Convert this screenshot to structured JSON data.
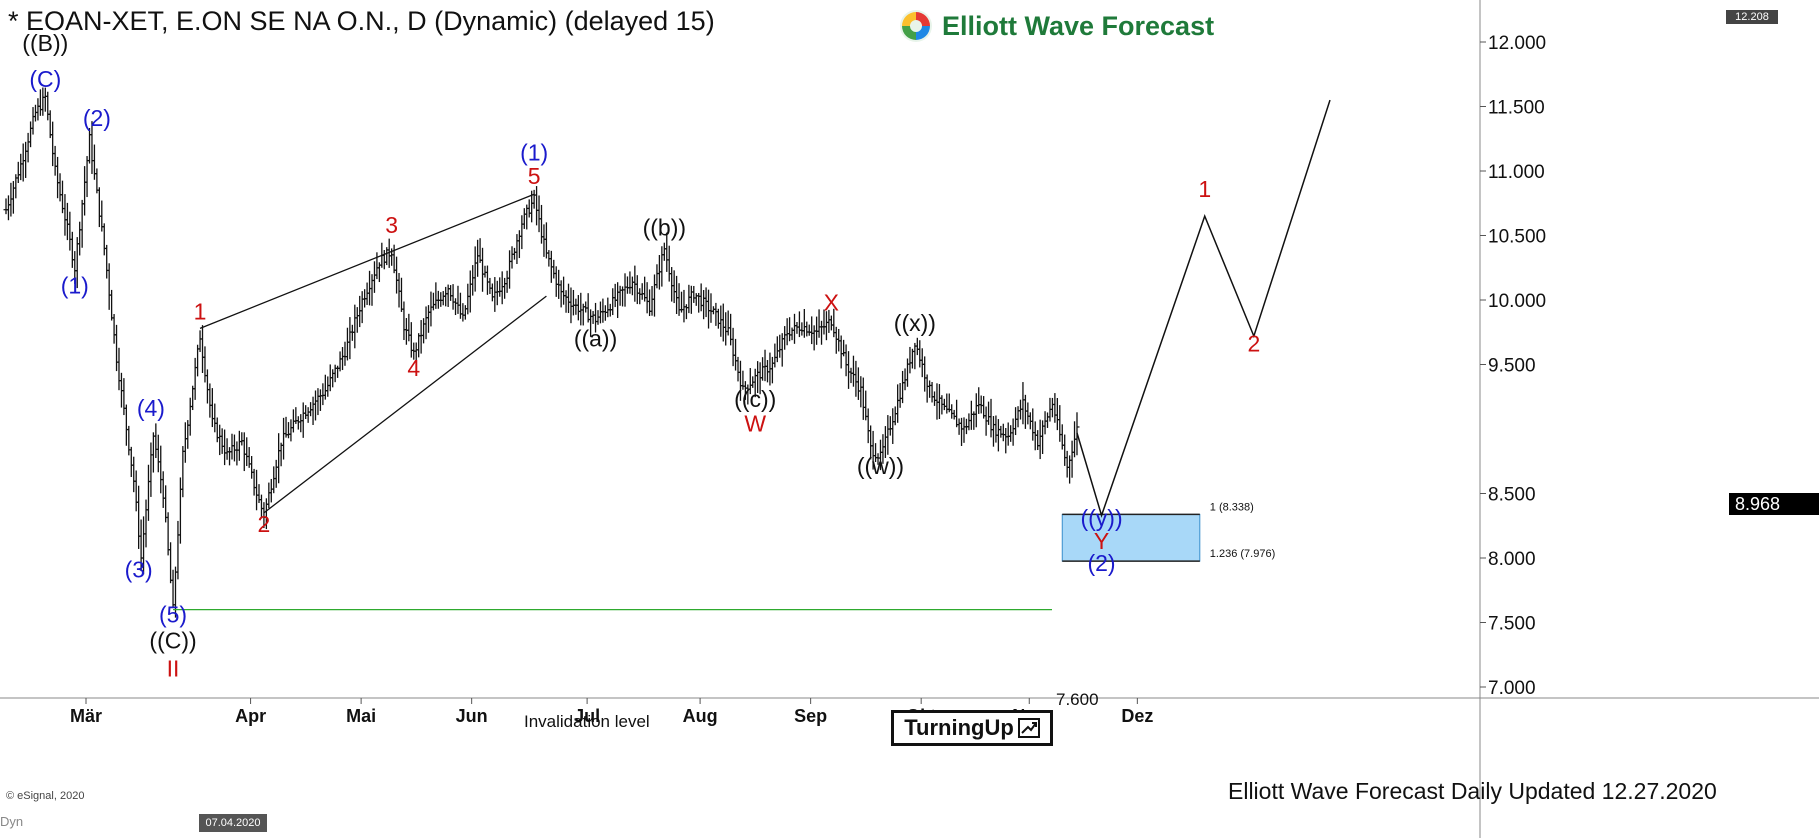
{
  "header": {
    "title": "* EOAN-XET, E.ON SE NA O.N., D (Dynamic) (delayed 15)",
    "brand": "Elliott Wave Forecast",
    "brand_logo_icon": "ewf-swirl-logo",
    "top_price_box": "12.208"
  },
  "footer": {
    "updated": "Elliott Wave Forecast Daily Updated 12.27.2020",
    "copyright": "© eSignal, 2020",
    "dyn": "Dyn",
    "cursor_date": "07.04.2020"
  },
  "turning_up": {
    "label": "TurningUp",
    "icon": "trend-up-arrow-icon"
  },
  "invalidation": {
    "label": "Invalidation level",
    "value_label": "7.600",
    "value": 7.6,
    "color": "#2eaa2e"
  },
  "current_price": {
    "label": "8.968",
    "value": 8.968
  },
  "target_zone": {
    "upper": 8.338,
    "lower": 7.976,
    "upper_label": "1 (8.338)",
    "lower_label": "1.236 (7.976)",
    "fill": "#a8d8f8",
    "stroke": "#3a8fcc"
  },
  "chart_data": {
    "type": "ohlc",
    "ylim": [
      7.0,
      12.25
    ],
    "yticks": [
      "7.000",
      "7.500",
      "8.000",
      "8.500",
      "9.500",
      "10.000",
      "10.500",
      "11.000",
      "11.500",
      "12.000"
    ],
    "xticks": [
      "Mär",
      "Apr",
      "Mai",
      "Jun",
      "Jul",
      "Aug",
      "Sep",
      "Okt",
      "Nov",
      "Dez"
    ],
    "colors": {
      "blue": "#1a1acc",
      "red": "#cc1111",
      "black": "#111111"
    },
    "anchors": [
      {
        "x": 0,
        "y": 10.7
      },
      {
        "x": 6,
        "y": 11.05
      },
      {
        "x": 12,
        "y": 11.45
      },
      {
        "x": 16,
        "y": 11.57
      },
      {
        "x": 20,
        "y": 11.0
      },
      {
        "x": 25,
        "y": 10.55
      },
      {
        "x": 28,
        "y": 10.25
      },
      {
        "x": 34,
        "y": 11.25
      },
      {
        "x": 40,
        "y": 10.4
      },
      {
        "x": 45,
        "y": 9.55
      },
      {
        "x": 52,
        "y": 8.6
      },
      {
        "x": 55,
        "y": 8.0
      },
      {
        "x": 60,
        "y": 8.95
      },
      {
        "x": 64,
        "y": 8.5
      },
      {
        "x": 68,
        "y": 7.6
      },
      {
        "x": 72,
        "y": 8.8
      },
      {
        "x": 79,
        "y": 9.72
      },
      {
        "x": 84,
        "y": 9.05
      },
      {
        "x": 90,
        "y": 8.8
      },
      {
        "x": 96,
        "y": 8.9
      },
      {
        "x": 102,
        "y": 8.5
      },
      {
        "x": 105,
        "y": 8.33
      },
      {
        "x": 112,
        "y": 8.9
      },
      {
        "x": 120,
        "y": 9.1
      },
      {
        "x": 130,
        "y": 9.3
      },
      {
        "x": 138,
        "y": 9.6
      },
      {
        "x": 145,
        "y": 10.0
      },
      {
        "x": 152,
        "y": 10.3
      },
      {
        "x": 157,
        "y": 10.38
      },
      {
        "x": 162,
        "y": 9.8
      },
      {
        "x": 166,
        "y": 9.58
      },
      {
        "x": 172,
        "y": 9.9
      },
      {
        "x": 180,
        "y": 10.1
      },
      {
        "x": 186,
        "y": 9.85
      },
      {
        "x": 192,
        "y": 10.35
      },
      {
        "x": 198,
        "y": 10.0
      },
      {
        "x": 204,
        "y": 10.2
      },
      {
        "x": 210,
        "y": 10.6
      },
      {
        "x": 215,
        "y": 10.78
      },
      {
        "x": 220,
        "y": 10.35
      },
      {
        "x": 226,
        "y": 10.05
      },
      {
        "x": 232,
        "y": 9.95
      },
      {
        "x": 240,
        "y": 9.85
      },
      {
        "x": 248,
        "y": 10.0
      },
      {
        "x": 255,
        "y": 10.15
      },
      {
        "x": 262,
        "y": 9.95
      },
      {
        "x": 268,
        "y": 10.4
      },
      {
        "x": 274,
        "y": 9.9
      },
      {
        "x": 280,
        "y": 10.05
      },
      {
        "x": 288,
        "y": 9.9
      },
      {
        "x": 294,
        "y": 9.75
      },
      {
        "x": 300,
        "y": 9.3
      },
      {
        "x": 305,
        "y": 9.4
      },
      {
        "x": 312,
        "y": 9.5
      },
      {
        "x": 318,
        "y": 9.75
      },
      {
        "x": 324,
        "y": 9.8
      },
      {
        "x": 330,
        "y": 9.75
      },
      {
        "x": 336,
        "y": 9.84
      },
      {
        "x": 342,
        "y": 9.5
      },
      {
        "x": 348,
        "y": 9.3
      },
      {
        "x": 352,
        "y": 8.85
      },
      {
        "x": 356,
        "y": 8.78
      },
      {
        "x": 362,
        "y": 9.15
      },
      {
        "x": 366,
        "y": 9.4
      },
      {
        "x": 370,
        "y": 9.68
      },
      {
        "x": 376,
        "y": 9.3
      },
      {
        "x": 382,
        "y": 9.15
      },
      {
        "x": 390,
        "y": 9.0
      },
      {
        "x": 396,
        "y": 9.2
      },
      {
        "x": 402,
        "y": 9.0
      },
      {
        "x": 408,
        "y": 8.95
      },
      {
        "x": 414,
        "y": 9.2
      },
      {
        "x": 420,
        "y": 8.9
      },
      {
        "x": 426,
        "y": 9.2
      },
      {
        "x": 432,
        "y": 8.7
      },
      {
        "x": 436,
        "y": 9.0
      }
    ],
    "projection": [
      {
        "x": 436,
        "y": 8.97
      },
      {
        "x": 446,
        "y": 8.33
      },
      {
        "x": 488,
        "y": 10.65
      },
      {
        "x": 508,
        "y": 9.72
      },
      {
        "x": 539,
        "y": 11.55
      }
    ],
    "wedge_lines": [
      [
        {
          "x": 79,
          "y": 9.78
        },
        {
          "x": 215,
          "y": 10.82
        }
      ],
      [
        {
          "x": 105,
          "y": 8.35
        },
        {
          "x": 220,
          "y": 10.03
        }
      ]
    ],
    "wave_labels": [
      {
        "text": "((B))",
        "x": 16,
        "y": 11.93,
        "color": "black"
      },
      {
        "text": "(C)",
        "x": 16,
        "y": 11.65,
        "color": "blue"
      },
      {
        "text": "(2)",
        "x": 37,
        "y": 11.35,
        "color": "blue"
      },
      {
        "text": "(1)",
        "x": 28,
        "y": 10.05,
        "color": "blue"
      },
      {
        "text": "(4)",
        "x": 59,
        "y": 9.1,
        "color": "blue"
      },
      {
        "text": "(3)",
        "x": 54,
        "y": 7.85,
        "color": "blue"
      },
      {
        "text": "(5)",
        "x": 68,
        "y": 7.5,
        "color": "blue"
      },
      {
        "text": "((C))",
        "x": 68,
        "y": 7.3,
        "color": "black"
      },
      {
        "text": "II",
        "x": 68,
        "y": 7.08,
        "color": "red"
      },
      {
        "text": "1",
        "x": 79,
        "y": 9.85,
        "color": "red"
      },
      {
        "text": "2",
        "x": 105,
        "y": 8.2,
        "color": "red"
      },
      {
        "text": "3",
        "x": 157,
        "y": 10.52,
        "color": "red"
      },
      {
        "text": "4",
        "x": 166,
        "y": 9.41,
        "color": "red"
      },
      {
        "text": "(1)",
        "x": 215,
        "y": 11.08,
        "color": "blue"
      },
      {
        "text": "5",
        "x": 215,
        "y": 10.9,
        "color": "red"
      },
      {
        "text": "((a))",
        "x": 240,
        "y": 9.64,
        "color": "black"
      },
      {
        "text": "((b))",
        "x": 268,
        "y": 10.5,
        "color": "black"
      },
      {
        "text": "((c))",
        "x": 305,
        "y": 9.17,
        "color": "black"
      },
      {
        "text": "W",
        "x": 305,
        "y": 8.98,
        "color": "red"
      },
      {
        "text": "X",
        "x": 336,
        "y": 9.92,
        "color": "red"
      },
      {
        "text": "((x))",
        "x": 370,
        "y": 9.76,
        "color": "black"
      },
      {
        "text": "((w))",
        "x": 356,
        "y": 8.65,
        "color": "black"
      },
      {
        "text": "((y))",
        "x": 446,
        "y": 8.25,
        "color": "blue"
      },
      {
        "text": "Y",
        "x": 446,
        "y": 8.07,
        "color": "red"
      },
      {
        "text": "(2)",
        "x": 446,
        "y": 7.9,
        "color": "blue"
      },
      {
        "text": "1",
        "x": 488,
        "y": 10.8,
        "color": "red"
      },
      {
        "text": "2",
        "x": 508,
        "y": 9.6,
        "color": "red"
      }
    ]
  }
}
